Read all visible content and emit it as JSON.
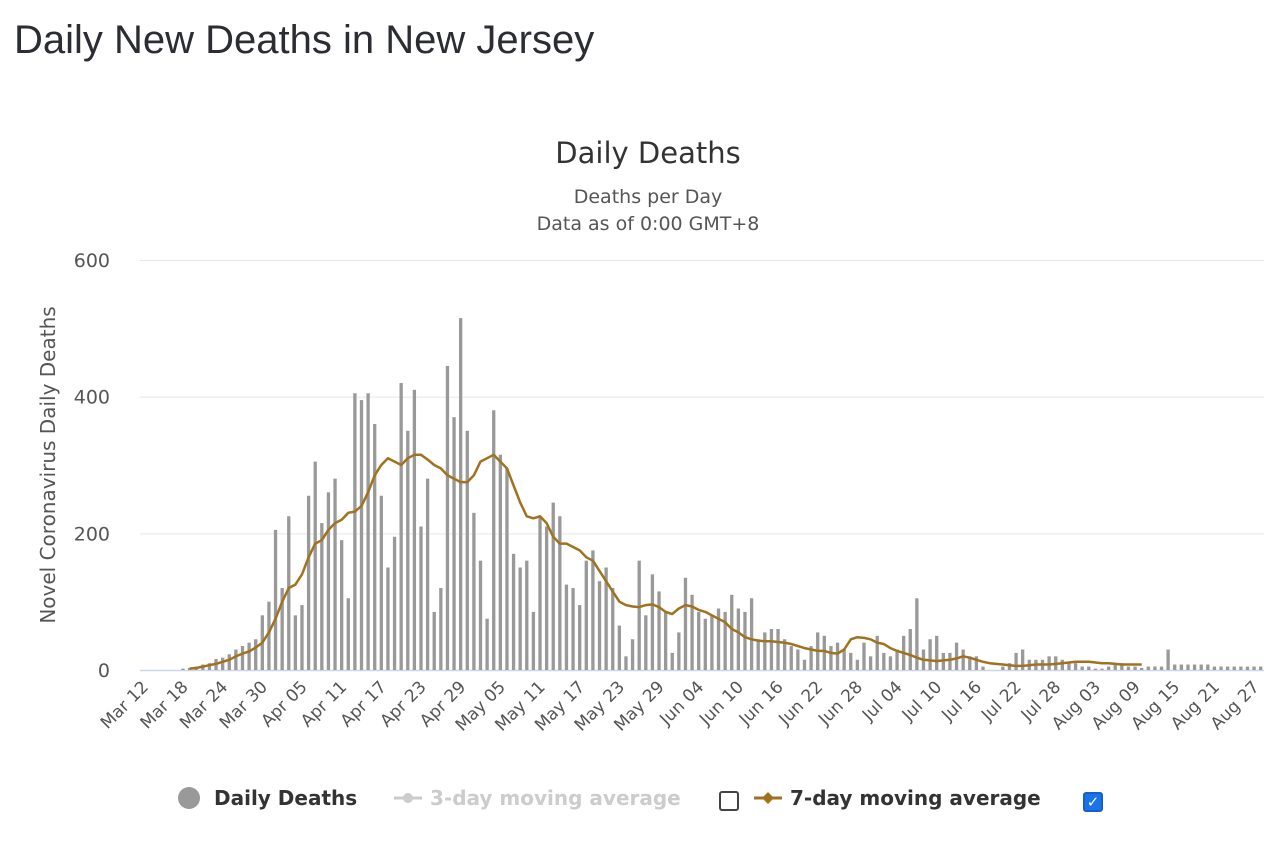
{
  "page": {
    "title": "Daily New Deaths in New Jersey"
  },
  "chart_data": {
    "type": "bar",
    "title": "Daily Deaths",
    "subtitle": "Deaths per Day",
    "subtitle2": "Data as of 0:00 GMT+8",
    "ylabel": "Novel Coronavirus Daily Deaths",
    "ylim": [
      0,
      600
    ],
    "yticks": [
      0,
      200,
      400,
      600
    ],
    "grid": true,
    "start_date": "2020-03-12",
    "xtick_labels": [
      "Mar 12",
      "Mar 18",
      "Mar 24",
      "Mar 30",
      "Apr 05",
      "Apr 11",
      "Apr 17",
      "Apr 23",
      "Apr 29",
      "May 05",
      "May 11",
      "May 17",
      "May 23",
      "May 29",
      "Jun 04",
      "Jun 10",
      "Jun 16",
      "Jun 22",
      "Jun 28",
      "Jul 04",
      "Jul 10",
      "Jul 16",
      "Jul 22",
      "Jul 28",
      "Aug 03",
      "Aug 09",
      "Aug 15",
      "Aug 21",
      "Aug 27"
    ],
    "series": [
      {
        "name": "Daily Deaths",
        "type": "bar",
        "color": "#999999",
        "values": [
          0,
          0,
          0,
          0,
          0,
          0,
          2,
          3,
          5,
          8,
          10,
          16,
          18,
          23,
          30,
          35,
          40,
          45,
          80,
          100,
          205,
          120,
          225,
          80,
          95,
          255,
          305,
          215,
          260,
          280,
          190,
          105,
          405,
          395,
          405,
          360,
          255,
          150,
          195,
          420,
          350,
          410,
          210,
          280,
          85,
          120,
          445,
          370,
          515,
          350,
          230,
          160,
          75,
          380,
          315,
          295,
          170,
          150,
          160,
          85,
          225,
          210,
          245,
          225,
          125,
          120,
          95,
          160,
          175,
          130,
          150,
          120,
          65,
          20,
          45,
          160,
          80,
          140,
          115,
          85,
          25,
          55,
          135,
          110,
          85,
          75,
          80,
          90,
          85,
          110,
          90,
          85,
          105,
          45,
          55,
          60,
          60,
          45,
          35,
          30,
          15,
          35,
          55,
          50,
          35,
          40,
          30,
          25,
          15,
          40,
          20,
          50,
          25,
          20,
          30,
          50,
          60,
          105,
          30,
          45,
          50,
          25,
          25,
          40,
          30,
          20,
          20,
          5,
          0,
          0,
          5,
          10,
          25,
          30,
          15,
          15,
          15,
          20,
          20,
          15,
          10,
          10,
          5,
          5,
          2,
          2,
          5,
          8,
          10,
          5,
          5,
          3,
          5,
          5,
          5,
          30,
          8,
          8,
          8,
          8,
          8,
          8,
          5,
          5,
          5,
          5,
          5,
          5,
          5,
          5
        ]
      },
      {
        "name": "3-day moving average",
        "type": "line",
        "color": "#cccccc",
        "visible": false
      },
      {
        "name": "7-day moving average",
        "type": "line",
        "color": "#a0721f",
        "visible": true,
        "start_index": 7,
        "values": [
          2,
          3,
          5,
          7,
          9,
          12,
          15,
          20,
          24,
          27,
          33,
          40,
          55,
          75,
          100,
          120,
          125,
          140,
          165,
          185,
          190,
          205,
          215,
          220,
          230,
          232,
          240,
          260,
          285,
          300,
          310,
          305,
          300,
          310,
          315,
          315,
          308,
          300,
          295,
          285,
          280,
          275,
          275,
          285,
          305,
          310,
          315,
          305,
          295,
          270,
          245,
          225,
          222,
          225,
          215,
          195,
          185,
          185,
          180,
          175,
          165,
          160,
          145,
          130,
          115,
          100,
          95,
          93,
          92,
          95,
          96,
          92,
          85,
          82,
          90,
          95,
          93,
          88,
          85,
          80,
          75,
          70,
          60,
          55,
          48,
          45,
          43,
          42,
          42,
          41,
          40,
          38,
          35,
          32,
          30,
          28,
          28,
          25,
          24,
          30,
          45,
          48,
          47,
          45,
          40,
          38,
          32,
          28,
          25,
          22,
          18,
          15,
          14,
          13,
          14,
          15,
          17,
          20,
          18,
          15,
          12,
          10,
          9,
          8,
          7,
          6,
          6,
          7,
          8,
          8,
          8,
          9,
          10,
          11,
          12,
          12,
          12,
          11,
          10,
          10,
          9,
          8,
          8,
          8,
          8
        ]
      }
    ]
  },
  "legend": {
    "items": [
      {
        "label": "Daily Deaths",
        "color": "#999999",
        "active": true
      },
      {
        "label": "3-day moving average",
        "color": "#cccccc",
        "active": false
      },
      {
        "label": "7-day moving average",
        "color": "#a0721f",
        "active": true
      }
    ]
  }
}
